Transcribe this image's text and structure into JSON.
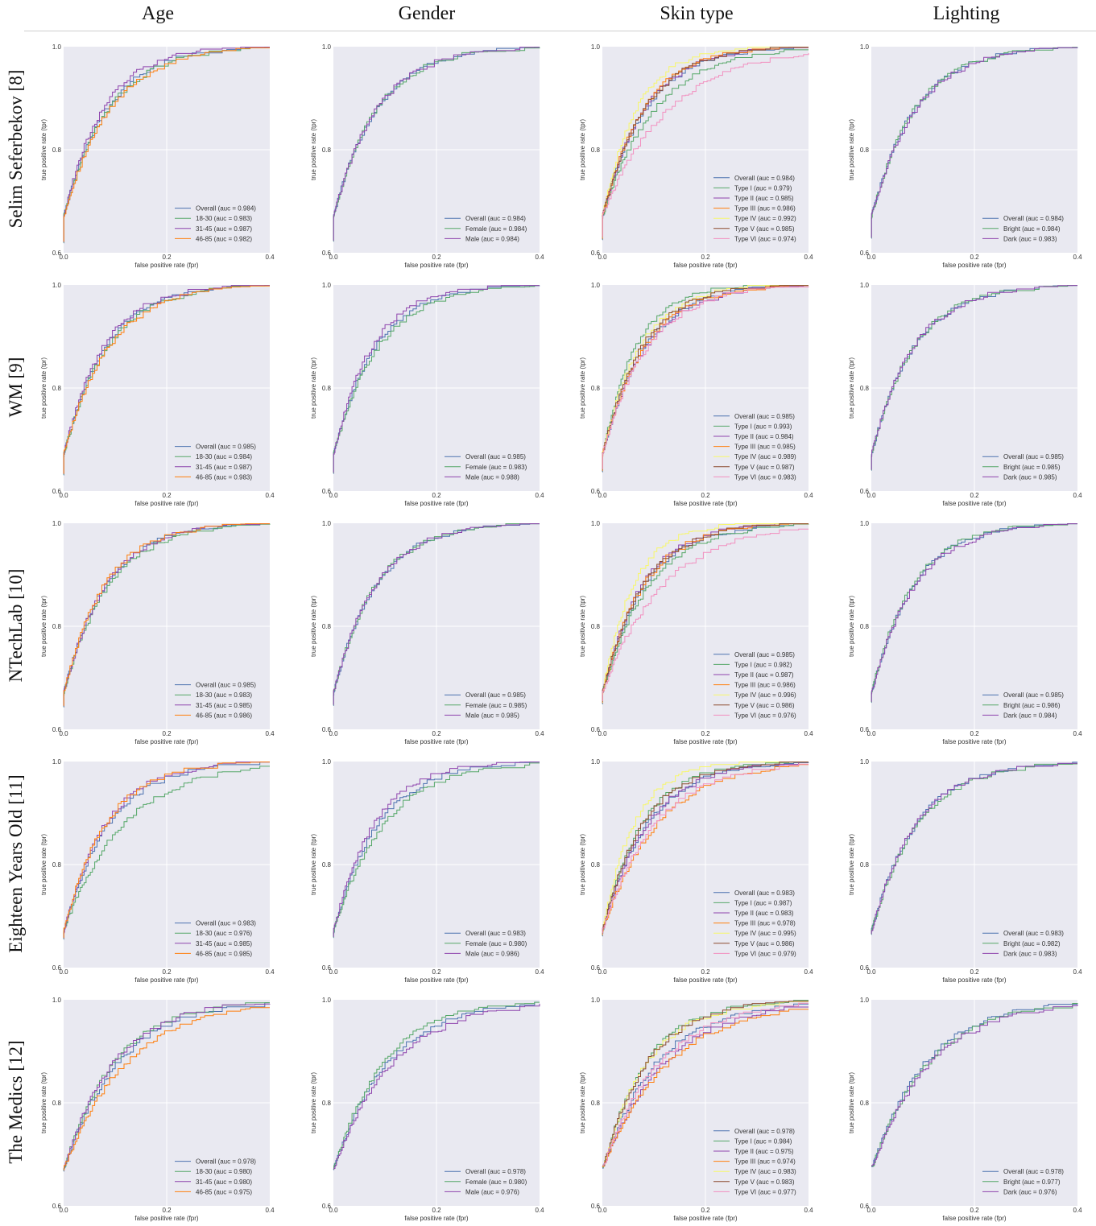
{
  "column_headers": [
    "Age",
    "Gender",
    "Skin type",
    "Lighting"
  ],
  "row_headers": [
    "Selim Seferbekov [8]",
    "WM [9]",
    "NTechLab [10]",
    "Eighteen Years Old [11]",
    "The Medics [12]"
  ],
  "axis": {
    "xlabel": "false positive rate (fpr)",
    "ylabel": "true positive rate (tpr)",
    "xlim": [
      0.0,
      0.4
    ],
    "ylim": [
      0.6,
      1.0
    ],
    "xticks": [
      "0.0",
      "0.2",
      "0.4"
    ],
    "yticks": [
      "0.6",
      "0.8",
      "1.0"
    ],
    "grid": true,
    "background": "#e9e9f1",
    "legend_position": "lower-right"
  },
  "group_colors": {
    "Overall": "#4c72b0",
    "18-30": "#55a868",
    "31-45": "#8e44ad",
    "46-85": "#ff7f0e",
    "Female": "#55a868",
    "Male": "#8e44ad",
    "Type I": "#55a868",
    "Type II": "#8e44ad",
    "Type III": "#ff7f0e",
    "Type IV": "#f7f76a",
    "Type V": "#8c4a2f",
    "Type VI": "#f28fbf",
    "Bright": "#55a868",
    "Dark": "#8e44ad"
  },
  "chart_data": [
    {
      "type": "line",
      "model": "Selim Seferbekov [8]",
      "attribute": "Age",
      "series": [
        {
          "name": "Overall (auc = 0.984)",
          "auc": 0.984
        },
        {
          "name": "18-30 (auc = 0.983)",
          "auc": 0.983
        },
        {
          "name": "31-45 (auc = 0.987)",
          "auc": 0.987
        },
        {
          "name": "46-85 (auc = 0.982)",
          "auc": 0.982
        }
      ]
    },
    {
      "type": "line",
      "model": "Selim Seferbekov [8]",
      "attribute": "Gender",
      "series": [
        {
          "name": "Overall (auc = 0.984)",
          "auc": 0.984
        },
        {
          "name": "Female (auc = 0.984)",
          "auc": 0.984
        },
        {
          "name": "Male (auc = 0.984)",
          "auc": 0.984
        }
      ]
    },
    {
      "type": "line",
      "model": "Selim Seferbekov [8]",
      "attribute": "Skin type",
      "series": [
        {
          "name": "Overall (auc = 0.984)",
          "auc": 0.984
        },
        {
          "name": "Type I (auc = 0.979)",
          "auc": 0.979
        },
        {
          "name": "Type II (auc = 0.985)",
          "auc": 0.985
        },
        {
          "name": "Type III (auc = 0.986)",
          "auc": 0.986
        },
        {
          "name": "Type IV (auc = 0.992)",
          "auc": 0.992
        },
        {
          "name": "Type V (auc = 0.985)",
          "auc": 0.985
        },
        {
          "name": "Type VI (auc = 0.974)",
          "auc": 0.974
        }
      ]
    },
    {
      "type": "line",
      "model": "Selim Seferbekov [8]",
      "attribute": "Lighting",
      "series": [
        {
          "name": "Overall (auc = 0.984)",
          "auc": 0.984
        },
        {
          "name": "Bright (auc = 0.984)",
          "auc": 0.984
        },
        {
          "name": "Dark (auc = 0.983)",
          "auc": 0.983
        }
      ]
    },
    {
      "type": "line",
      "model": "WM [9]",
      "attribute": "Age",
      "series": [
        {
          "name": "Overall (auc = 0.985)",
          "auc": 0.985
        },
        {
          "name": "18-30 (auc = 0.984)",
          "auc": 0.984
        },
        {
          "name": "31-45 (auc = 0.987)",
          "auc": 0.987
        },
        {
          "name": "46-85 (auc = 0.983)",
          "auc": 0.983
        }
      ]
    },
    {
      "type": "line",
      "model": "WM [9]",
      "attribute": "Gender",
      "series": [
        {
          "name": "Overall (auc = 0.985)",
          "auc": 0.985
        },
        {
          "name": "Female (auc = 0.983)",
          "auc": 0.983
        },
        {
          "name": "Male (auc = 0.988)",
          "auc": 0.988
        }
      ]
    },
    {
      "type": "line",
      "model": "WM [9]",
      "attribute": "Skin type",
      "series": [
        {
          "name": "Overall (auc = 0.985)",
          "auc": 0.985
        },
        {
          "name": "Type I (auc = 0.993)",
          "auc": 0.993
        },
        {
          "name": "Type II (auc = 0.984)",
          "auc": 0.984
        },
        {
          "name": "Type III (auc = 0.985)",
          "auc": 0.985
        },
        {
          "name": "Type IV (auc = 0.989)",
          "auc": 0.989
        },
        {
          "name": "Type V (auc = 0.987)",
          "auc": 0.987
        },
        {
          "name": "Type VI (auc = 0.983)",
          "auc": 0.983
        }
      ]
    },
    {
      "type": "line",
      "model": "WM [9]",
      "attribute": "Lighting",
      "series": [
        {
          "name": "Overall (auc = 0.985)",
          "auc": 0.985
        },
        {
          "name": "Bright (auc = 0.985)",
          "auc": 0.985
        },
        {
          "name": "Dark (auc = 0.985)",
          "auc": 0.985
        }
      ]
    },
    {
      "type": "line",
      "model": "NTechLab [10]",
      "attribute": "Age",
      "series": [
        {
          "name": "Overall (auc = 0.985)",
          "auc": 0.985
        },
        {
          "name": "18-30 (auc = 0.983)",
          "auc": 0.983
        },
        {
          "name": "31-45 (auc = 0.985)",
          "auc": 0.985
        },
        {
          "name": "46-85 (auc = 0.986)",
          "auc": 0.986
        }
      ]
    },
    {
      "type": "line",
      "model": "NTechLab [10]",
      "attribute": "Gender",
      "series": [
        {
          "name": "Overall (auc = 0.985)",
          "auc": 0.985
        },
        {
          "name": "Female (auc = 0.985)",
          "auc": 0.985
        },
        {
          "name": "Male (auc = 0.985)",
          "auc": 0.985
        }
      ]
    },
    {
      "type": "line",
      "model": "NTechLab [10]",
      "attribute": "Skin type",
      "series": [
        {
          "name": "Overall (auc = 0.985)",
          "auc": 0.985
        },
        {
          "name": "Type I (auc = 0.982)",
          "auc": 0.982
        },
        {
          "name": "Type II (auc = 0.987)",
          "auc": 0.987
        },
        {
          "name": "Type III (auc = 0.986)",
          "auc": 0.986
        },
        {
          "name": "Type IV (auc = 0.996)",
          "auc": 0.996
        },
        {
          "name": "Type V (auc = 0.986)",
          "auc": 0.986
        },
        {
          "name": "Type VI (auc = 0.976)",
          "auc": 0.976
        }
      ]
    },
    {
      "type": "line",
      "model": "NTechLab [10]",
      "attribute": "Lighting",
      "series": [
        {
          "name": "Overall (auc = 0.985)",
          "auc": 0.985
        },
        {
          "name": "Bright (auc = 0.986)",
          "auc": 0.986
        },
        {
          "name": "Dark (auc = 0.984)",
          "auc": 0.984
        }
      ]
    },
    {
      "type": "line",
      "model": "Eighteen Years Old [11]",
      "attribute": "Age",
      "series": [
        {
          "name": "Overall (auc = 0.983)",
          "auc": 0.983
        },
        {
          "name": "18-30 (auc = 0.976)",
          "auc": 0.976
        },
        {
          "name": "31-45 (auc = 0.985)",
          "auc": 0.985
        },
        {
          "name": "46-85 (auc = 0.985)",
          "auc": 0.985
        }
      ]
    },
    {
      "type": "line",
      "model": "Eighteen Years Old [11]",
      "attribute": "Gender",
      "series": [
        {
          "name": "Overall (auc = 0.983)",
          "auc": 0.983
        },
        {
          "name": "Female (auc = 0.980)",
          "auc": 0.98
        },
        {
          "name": "Male (auc = 0.986)",
          "auc": 0.986
        }
      ]
    },
    {
      "type": "line",
      "model": "Eighteen Years Old [11]",
      "attribute": "Skin type",
      "series": [
        {
          "name": "Overall (auc = 0.983)",
          "auc": 0.983
        },
        {
          "name": "Type I (auc = 0.987)",
          "auc": 0.987
        },
        {
          "name": "Type II (auc = 0.983)",
          "auc": 0.983
        },
        {
          "name": "Type III (auc = 0.978)",
          "auc": 0.978
        },
        {
          "name": "Type IV (auc = 0.995)",
          "auc": 0.995
        },
        {
          "name": "Type V (auc = 0.986)",
          "auc": 0.986
        },
        {
          "name": "Type VI (auc = 0.979)",
          "auc": 0.979
        }
      ]
    },
    {
      "type": "line",
      "model": "Eighteen Years Old [11]",
      "attribute": "Lighting",
      "series": [
        {
          "name": "Overall (auc = 0.983)",
          "auc": 0.983
        },
        {
          "name": "Bright (auc = 0.982)",
          "auc": 0.982
        },
        {
          "name": "Dark (auc = 0.983)",
          "auc": 0.983
        }
      ]
    },
    {
      "type": "line",
      "model": "The Medics [12]",
      "attribute": "Age",
      "series": [
        {
          "name": "Overall (auc = 0.978)",
          "auc": 0.978
        },
        {
          "name": "18-30 (auc = 0.980)",
          "auc": 0.98
        },
        {
          "name": "31-45 (auc = 0.980)",
          "auc": 0.98
        },
        {
          "name": "46-85 (auc = 0.975)",
          "auc": 0.975
        }
      ]
    },
    {
      "type": "line",
      "model": "The Medics [12]",
      "attribute": "Gender",
      "series": [
        {
          "name": "Overall (auc = 0.978)",
          "auc": 0.978
        },
        {
          "name": "Female (auc = 0.980)",
          "auc": 0.98
        },
        {
          "name": "Male (auc = 0.976)",
          "auc": 0.976
        }
      ]
    },
    {
      "type": "line",
      "model": "The Medics [12]",
      "attribute": "Skin type",
      "series": [
        {
          "name": "Overall (auc = 0.978)",
          "auc": 0.978
        },
        {
          "name": "Type I (auc = 0.984)",
          "auc": 0.984
        },
        {
          "name": "Type II (auc = 0.975)",
          "auc": 0.975
        },
        {
          "name": "Type III (auc = 0.974)",
          "auc": 0.974
        },
        {
          "name": "Type IV (auc = 0.983)",
          "auc": 0.983
        },
        {
          "name": "Type V (auc = 0.983)",
          "auc": 0.983
        },
        {
          "name": "Type VI (auc = 0.977)",
          "auc": 0.977
        }
      ]
    },
    {
      "type": "line",
      "model": "The Medics [12]",
      "attribute": "Lighting",
      "series": [
        {
          "name": "Overall (auc = 0.978)",
          "auc": 0.978
        },
        {
          "name": "Bright (auc = 0.977)",
          "auc": 0.977
        },
        {
          "name": "Dark (auc = 0.976)",
          "auc": 0.976
        }
      ]
    }
  ]
}
